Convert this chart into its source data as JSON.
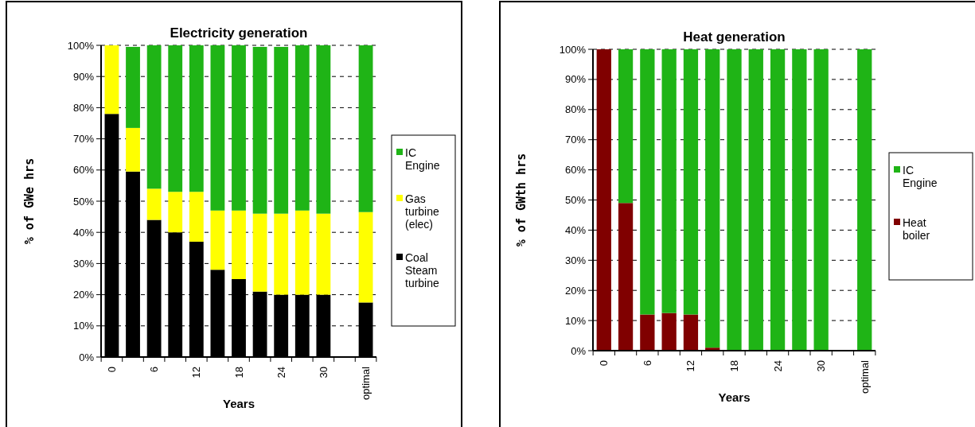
{
  "chart_data": [
    {
      "type": "bar",
      "title": "Electricity generation",
      "xlabel": "Years",
      "ylabel": "% of GWe hrs",
      "stacked": true,
      "legend": "right",
      "grid": "y",
      "categories": [
        "0",
        null,
        "6",
        null,
        "12",
        null,
        "18",
        null,
        "24",
        null,
        "30",
        null,
        "optimal"
      ],
      "ylim": [
        0,
        100
      ],
      "yticks": [
        {
          "value": 0,
          "label": "0%"
        },
        {
          "value": 10,
          "label": "10%"
        },
        {
          "value": 20,
          "label": "20%"
        },
        {
          "value": 30,
          "label": "30%"
        },
        {
          "value": 40,
          "label": "40%"
        },
        {
          "value": 50,
          "label": "50%"
        },
        {
          "value": 60,
          "label": "60%"
        },
        {
          "value": 70,
          "label": "70%"
        },
        {
          "value": 80,
          "label": "80%"
        },
        {
          "value": 90,
          "label": "90%"
        },
        {
          "value": 100,
          "label": "100%"
        }
      ],
      "series": [
        {
          "name": "Coal Steam turbine",
          "color": "#000000",
          "values": [
            78,
            59.5,
            44,
            40,
            37,
            28,
            25,
            21,
            20,
            20,
            20,
            null,
            17.5
          ]
        },
        {
          "name": "Gas turbine (elec)",
          "color": "#ffff00",
          "values": [
            22,
            14,
            10,
            13,
            16,
            19,
            22,
            25,
            26,
            27,
            26,
            null,
            29
          ]
        },
        {
          "name": "IC Engine",
          "color": "#1fb416",
          "values": [
            0,
            26,
            46,
            47,
            47,
            53,
            53,
            53.5,
            53.5,
            53,
            54,
            null,
            53.5
          ]
        }
      ]
    },
    {
      "type": "bar",
      "title": "Heat generation",
      "xlabel": "Years",
      "ylabel": "% of GWth hrs",
      "stacked": true,
      "legend": "right",
      "grid": "y",
      "categories": [
        "0",
        null,
        "6",
        null,
        "12",
        null,
        "18",
        null,
        "24",
        null,
        "30",
        null,
        "optimal"
      ],
      "ylim": [
        0,
        100
      ],
      "yticks": [
        {
          "value": 0,
          "label": "0%"
        },
        {
          "value": 10,
          "label": "10%"
        },
        {
          "value": 20,
          "label": "20%"
        },
        {
          "value": 30,
          "label": "30%"
        },
        {
          "value": 40,
          "label": "40%"
        },
        {
          "value": 50,
          "label": "50%"
        },
        {
          "value": 60,
          "label": "60%"
        },
        {
          "value": 70,
          "label": "70%"
        },
        {
          "value": 80,
          "label": "80%"
        },
        {
          "value": 90,
          "label": "90%"
        },
        {
          "value": 100,
          "label": "100%"
        }
      ],
      "series": [
        {
          "name": "Heat boiler",
          "color": "#800000",
          "values": [
            100,
            49,
            12,
            12.5,
            12,
            1,
            0,
            0,
            0,
            0,
            0,
            null,
            0
          ]
        },
        {
          "name": "IC Engine",
          "color": "#1fb416",
          "values": [
            0,
            51,
            88,
            87.5,
            88,
            99,
            100,
            100,
            100,
            100,
            100,
            null,
            100
          ]
        }
      ]
    }
  ]
}
